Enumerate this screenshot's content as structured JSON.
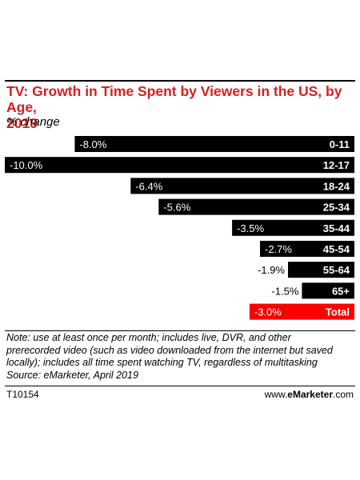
{
  "title": "TV: Growth in Time Spent by Viewers in the US, by Age, 2019",
  "title_line1": "TV: Growth in Time Spent by Viewers in the US, by Age,",
  "title_line2": "2019",
  "subtitle": "% change",
  "chart_data": {
    "type": "bar",
    "orientation": "horizontal",
    "categories": [
      "0-11",
      "12-17",
      "18-24",
      "25-34",
      "35-44",
      "45-54",
      "55-64",
      "65+",
      "Total"
    ],
    "values": [
      -8.0,
      -10.0,
      -6.4,
      -5.6,
      -3.5,
      -2.7,
      -1.9,
      -1.5,
      -3.0
    ],
    "value_labels": [
      "-8.0%",
      "-10.0%",
      "-6.4%",
      "-5.6%",
      "-3.5%",
      "-2.7%",
      "-1.9%",
      "-1.5%",
      "-3.0%"
    ],
    "unit": "%",
    "xlim": [
      -10,
      0
    ],
    "colors": {
      "bar": "#000000",
      "highlight": "#ff0000",
      "highlight_category": "Total"
    }
  },
  "footnote_lines": [
    "Note: use at least once per month; includes live, DVR, and other",
    "prerecorded video (such as video downloaded from the internet but saved",
    "locally); includes all time spent watching TV, regardless of multitasking",
    "Source: eMarketer, April 2019"
  ],
  "chart_code": "T10154",
  "brand": {
    "prefix": "www.",
    "name": "eMarketer",
    "suffix": ".com"
  }
}
